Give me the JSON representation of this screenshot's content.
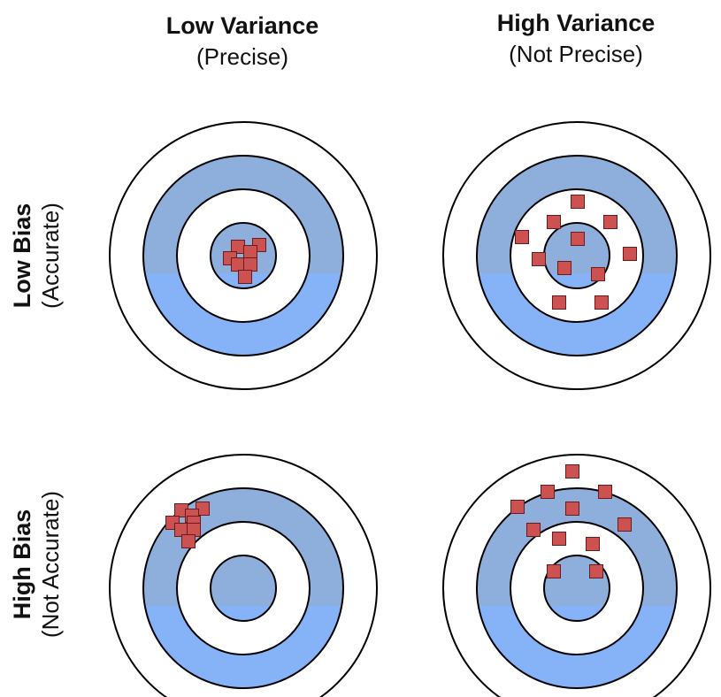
{
  "columns": [
    {
      "title": "Low Variance",
      "subtitle": "(Precise)"
    },
    {
      "title": "High Variance",
      "subtitle": "(Not Precise)"
    }
  ],
  "rows": [
    {
      "title": "Low Bias",
      "subtitle": "(Accurate)"
    },
    {
      "title": "High Bias",
      "subtitle": "(Not Accurate)"
    }
  ],
  "colors": {
    "band_top": "#8eaedc",
    "band_bottom": "#86b2f8",
    "marker_fill": "#cc5252",
    "marker_stroke": "#6a1c1c",
    "ring_stroke": "#000000"
  }
}
